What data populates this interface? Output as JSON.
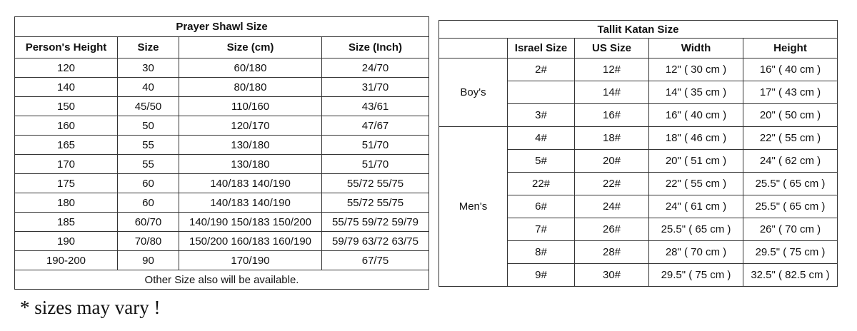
{
  "prayer": {
    "title": "Prayer Shawl Size",
    "headers": [
      "Person's Height",
      "Size",
      "Size (cm)",
      "Size (Inch)"
    ],
    "rows": [
      [
        "120",
        "30",
        "60/180",
        "24/70"
      ],
      [
        "140",
        "40",
        "80/180",
        "31/70"
      ],
      [
        "150",
        "45/50",
        "110/160",
        "43/61"
      ],
      [
        "160",
        "50",
        "120/170",
        "47/67"
      ],
      [
        "165",
        "55",
        "130/180",
        "51/70"
      ],
      [
        "170",
        "55",
        "130/180",
        "51/70"
      ],
      [
        "175",
        "60",
        "140/183  140/190",
        "55/72  55/75"
      ],
      [
        "180",
        "60",
        "140/183  140/190",
        "55/72  55/75"
      ],
      [
        "185",
        "60/70",
        "140/190  150/183  150/200",
        "55/75  59/72  59/79"
      ],
      [
        "190",
        "70/80",
        "150/200  160/183  160/190",
        "59/79  63/72  63/75"
      ],
      [
        "190-200",
        "90",
        "170/190",
        "67/75"
      ]
    ],
    "footer": "Other Size also will be available."
  },
  "tallit": {
    "title": "Tallit Katan Size",
    "headers": [
      "",
      "Israel Size",
      "US Size",
      "Width",
      "Height"
    ],
    "groups": [
      {
        "label": "Boy's",
        "rows": [
          [
            "2#",
            "12#",
            "12\" ( 30 cm )",
            "16\" ( 40 cm )"
          ],
          [
            "",
            "14#",
            "14\" ( 35 cm )",
            "17\" ( 43 cm )"
          ],
          [
            "3#",
            "16#",
            "16\" ( 40 cm )",
            "20\" ( 50 cm )"
          ]
        ]
      },
      {
        "label": "Men's",
        "rows": [
          [
            "4#",
            "18#",
            "18\" ( 46 cm )",
            "22\" ( 55 cm )"
          ],
          [
            "5#",
            "20#",
            "20\" ( 51 cm )",
            "24\" ( 62 cm )"
          ],
          [
            "22#",
            "22#",
            "22\" ( 55 cm )",
            "25.5\" ( 65 cm )"
          ],
          [
            "6#",
            "24#",
            "24\" ( 61 cm )",
            "25.5\" ( 65 cm )"
          ],
          [
            "7#",
            "26#",
            "25.5\" ( 65 cm )",
            "26\" ( 70 cm )"
          ],
          [
            "8#",
            "28#",
            "28\" ( 70 cm )",
            "29.5\" ( 75 cm )"
          ],
          [
            "9#",
            "30#",
            "29.5\" ( 75 cm )",
            "32.5\" ( 82.5 cm )"
          ]
        ]
      }
    ]
  },
  "note": "* sizes may vary !"
}
